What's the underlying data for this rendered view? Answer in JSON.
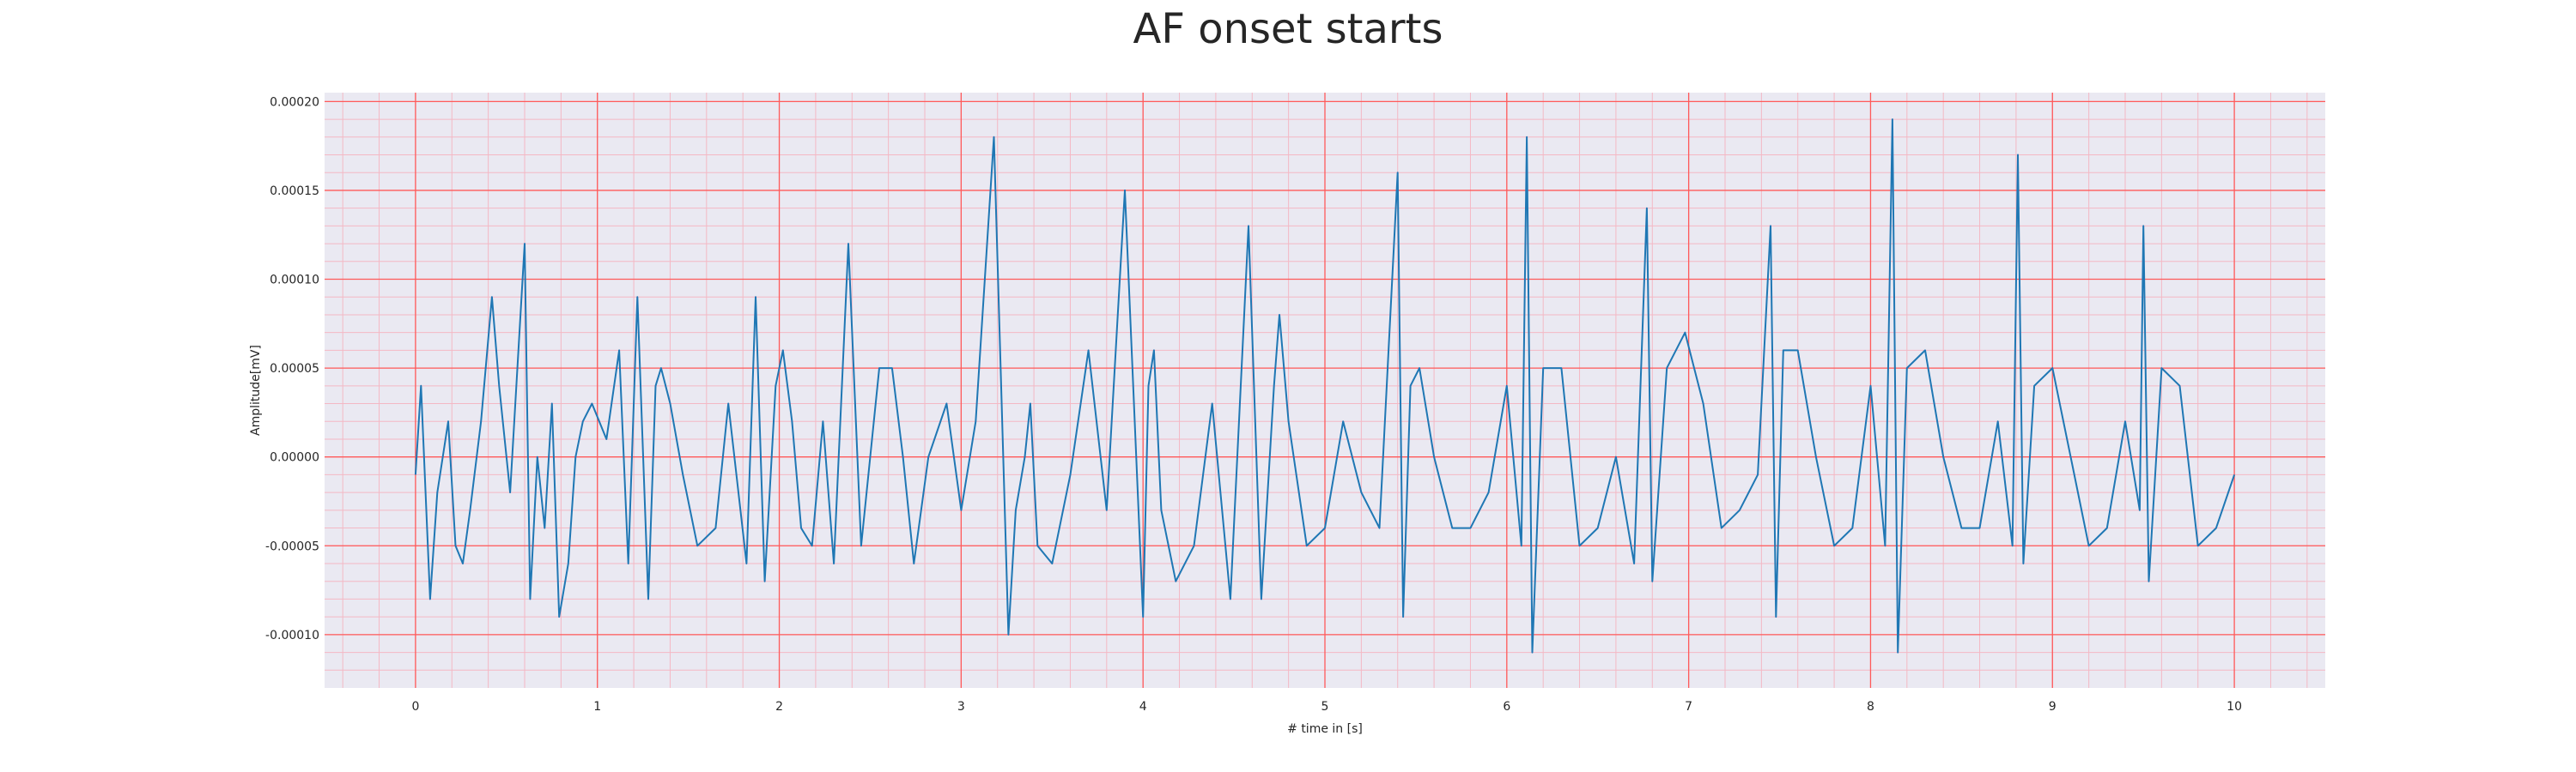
{
  "chart_data": {
    "type": "line",
    "title": "AF onset starts",
    "xlabel": "# time in [s]",
    "ylabel": "Amplitude[mV]",
    "xlim": [
      -0.5,
      10.5
    ],
    "ylim": [
      -0.00013,
      0.000205
    ],
    "x_ticks": [
      0,
      1,
      2,
      3,
      4,
      5,
      6,
      7,
      8,
      9,
      10
    ],
    "x_tick_labels": [
      "0",
      "1",
      "2",
      "3",
      "4",
      "5",
      "6",
      "7",
      "8",
      "9",
      "10"
    ],
    "y_ticks": [
      -0.0001,
      -5e-05,
      0.0,
      5e-05,
      0.0001,
      0.00015,
      0.0002
    ],
    "y_tick_labels": [
      "-0.00010",
      "-0.00005",
      "0.00000",
      "0.00005",
      "0.00010",
      "0.00015",
      "0.00020"
    ],
    "grid": true,
    "colors": {
      "background": "#eae9f2",
      "major_grid": "#ff5a5a",
      "minor_grid": "#f4b8c4",
      "line": "#1f77b4"
    },
    "series": [
      {
        "x": [
          0.0,
          0.03,
          0.08,
          0.12,
          0.18,
          0.22,
          0.26,
          0.3,
          0.36,
          0.42,
          0.46,
          0.52,
          0.6,
          0.63,
          0.67,
          0.71,
          0.75,
          0.79,
          0.84,
          0.88,
          0.92,
          0.97,
          1.05,
          1.12,
          1.17,
          1.22,
          1.28,
          1.32,
          1.35,
          1.4,
          1.47,
          1.55,
          1.65,
          1.72,
          1.82,
          1.87,
          1.92,
          1.98,
          2.02,
          2.07,
          2.12,
          2.18,
          2.24,
          2.3,
          2.38,
          2.45,
          2.55,
          2.62,
          2.68,
          2.74,
          2.82,
          2.92,
          3.0,
          3.08,
          3.18,
          3.26,
          3.3,
          3.35,
          3.38,
          3.42,
          3.5,
          3.6,
          3.7,
          3.8,
          3.9,
          4.0,
          4.03,
          4.06,
          4.1,
          4.18,
          4.28,
          4.38,
          4.48,
          4.58,
          4.65,
          4.72,
          4.75,
          4.8,
          4.9,
          5.0,
          5.1,
          5.2,
          5.3,
          5.4,
          5.43,
          5.47,
          5.52,
          5.6,
          5.7,
          5.8,
          5.9,
          6.0,
          6.08,
          6.11,
          6.14,
          6.2,
          6.3,
          6.4,
          6.5,
          6.6,
          6.7,
          6.77,
          6.8,
          6.88,
          6.98,
          7.08,
          7.18,
          7.28,
          7.38,
          7.45,
          7.48,
          7.52,
          7.6,
          7.7,
          7.8,
          7.9,
          8.0,
          8.08,
          8.12,
          8.15,
          8.2,
          8.3,
          8.4,
          8.5,
          8.6,
          8.7,
          8.78,
          8.81,
          8.84,
          8.9,
          9.0,
          9.1,
          9.2,
          9.3,
          9.4,
          9.48,
          9.5,
          9.53,
          9.6,
          9.7,
          9.8,
          9.9,
          10.0
        ],
        "y": [
          -1e-05,
          4e-05,
          -8e-05,
          -2e-05,
          2e-05,
          -5e-05,
          -6e-05,
          -3e-05,
          2e-05,
          9e-05,
          4e-05,
          -2e-05,
          0.00012,
          -8e-05,
          0.0,
          -4e-05,
          3e-05,
          -9e-05,
          -6e-05,
          0.0,
          2e-05,
          3e-05,
          1e-05,
          6e-05,
          -6e-05,
          9e-05,
          -8e-05,
          4e-05,
          5e-05,
          3e-05,
          -1e-05,
          -5e-05,
          -4e-05,
          3e-05,
          -6e-05,
          9e-05,
          -7e-05,
          4e-05,
          6e-05,
          2e-05,
          -4e-05,
          -5e-05,
          2e-05,
          -6e-05,
          0.00012,
          -5e-05,
          5e-05,
          5e-05,
          0.0,
          -6e-05,
          0.0,
          3e-05,
          -3e-05,
          2e-05,
          0.00018,
          -0.0001,
          -3e-05,
          0.0,
          3e-05,
          -5e-05,
          -6e-05,
          -1e-05,
          6e-05,
          -3e-05,
          0.00015,
          -9e-05,
          4e-05,
          6e-05,
          -3e-05,
          -7e-05,
          -5e-05,
          3e-05,
          -8e-05,
          0.00013,
          -8e-05,
          4e-05,
          8e-05,
          2e-05,
          -5e-05,
          -4e-05,
          2e-05,
          -2e-05,
          -4e-05,
          0.00016,
          -9e-05,
          4e-05,
          5e-05,
          0.0,
          -4e-05,
          -4e-05,
          -2e-05,
          4e-05,
          -5e-05,
          0.00018,
          -0.00011,
          5e-05,
          5e-05,
          -5e-05,
          -4e-05,
          0.0,
          -6e-05,
          0.00014,
          -7e-05,
          5e-05,
          7e-05,
          3e-05,
          -4e-05,
          -3e-05,
          -1e-05,
          0.00013,
          -9e-05,
          6e-05,
          6e-05,
          0.0,
          -5e-05,
          -4e-05,
          4e-05,
          -5e-05,
          0.00019,
          -0.00011,
          5e-05,
          6e-05,
          0.0,
          -4e-05,
          -4e-05,
          2e-05,
          -5e-05,
          0.00017,
          -6e-05,
          4e-05,
          5e-05,
          0.0,
          -5e-05,
          -4e-05,
          2e-05,
          -3e-05,
          0.00013,
          -7e-05,
          5e-05,
          4e-05,
          -5e-05,
          -4e-05,
          -1e-05
        ]
      }
    ]
  }
}
